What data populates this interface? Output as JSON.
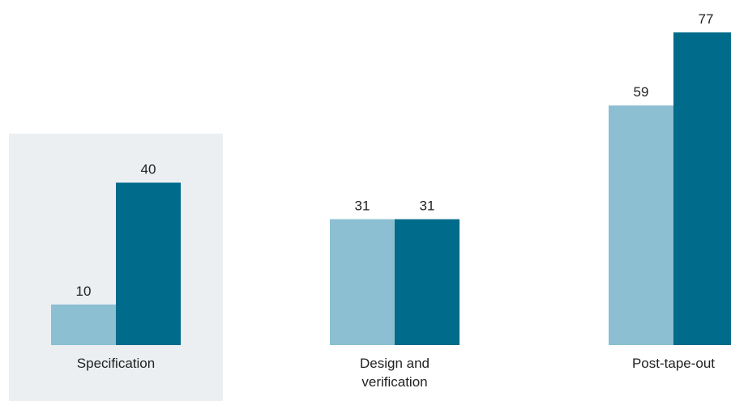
{
  "chart_data": {
    "type": "bar",
    "categories": [
      "Specification",
      "Design and verification",
      "Post-tape-out"
    ],
    "category_label_lines": [
      [
        "Specification"
      ],
      [
        "Design and",
        "verification"
      ],
      [
        "Post-tape-out"
      ]
    ],
    "series": [
      {
        "values": [
          10,
          31,
          59
        ],
        "color": "#8bbfd1"
      },
      {
        "values": [
          40,
          31,
          77
        ],
        "color": "#006b8a"
      }
    ],
    "value_labels": [
      [
        "10",
        "31",
        "59"
      ],
      [
        "40",
        "31",
        "77"
      ]
    ],
    "highlight_category": "Specification",
    "highlight_color": "#ebeff2",
    "ylim": [
      0,
      77
    ],
    "grid": false,
    "legend": "none"
  }
}
